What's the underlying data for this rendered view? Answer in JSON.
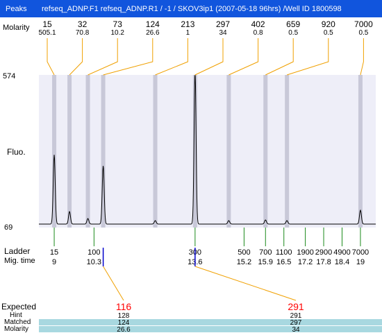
{
  "header": {
    "title": "refseq_ADNP.F1  refseq_ADNP.R1 / -1 / SKOV3ip1 (2007-05-18 96hrs) /Well ID 1800598",
    "left_label": "Peaks"
  },
  "row_labels": {
    "molarity": "Molarity",
    "fluo": "Fluo.",
    "ladder": "Ladder",
    "mig_time": "Mig. time",
    "expected": "Expected",
    "hint": "Hint",
    "matched": "Matched",
    "molarity_bottom": "Molarity"
  },
  "colors": {
    "title_bg": "#1155dd",
    "plot_bg": "#eeeef8",
    "band": "#c8c8d8",
    "connector": "#f0a000",
    "ladder_tick": "#1a8a1a",
    "expected_marker": "#0000cc",
    "expected_text": "#ff0000",
    "matched_band": "#a8d8e0"
  },
  "chart_data": {
    "type": "line",
    "title": "refseq_ADNP.F1  refseq_ADNP.R1 / -1 / SKOV3ip1 (2007-05-18 96hrs) /Well ID 1800598",
    "ylabel": "Fluo.",
    "ylim": [
      69,
      574
    ],
    "y_ticks": [
      "574",
      "69"
    ],
    "xlim": [
      8.5,
      19.5
    ],
    "peaks": [
      {
        "size": "15",
        "molarity": "505.1",
        "time": 9.0,
        "height": 100
      },
      {
        "size": "32",
        "molarity": "70.8",
        "time": 9.5,
        "height": 18
      },
      {
        "size": "73",
        "molarity": "10.2",
        "time": 10.1,
        "height": 8
      },
      {
        "size": "124",
        "molarity": "26.6",
        "time": 10.6,
        "height": 84
      },
      {
        "size": "213",
        "molarity": "1",
        "time": 12.3,
        "height": 5
      },
      {
        "size": "297",
        "molarity": "34",
        "time": 13.6,
        "height": 220
      },
      {
        "size": "402",
        "molarity": "0.8",
        "time": 14.7,
        "height": 5
      },
      {
        "size": "659",
        "molarity": "0.5",
        "time": 15.9,
        "height": 6
      },
      {
        "size": "920",
        "molarity": "0.5",
        "time": 16.6,
        "height": 5
      },
      {
        "size": "7000",
        "molarity": "0.5",
        "time": 19.0,
        "height": 20
      }
    ],
    "ladder": [
      {
        "size": "15",
        "time": "9",
        "t": 9.0
      },
      {
        "size": "100",
        "time": "10.3",
        "t": 10.3
      },
      {
        "size": "300",
        "time": "13.6",
        "t": 13.6
      },
      {
        "size": "500",
        "time": "15.2",
        "t": 15.2
      },
      {
        "size": "700",
        "time": "15.9",
        "t": 15.9
      },
      {
        "size": "1100",
        "time": "16.5",
        "t": 16.5
      },
      {
        "size": "1900",
        "time": "17.2",
        "t": 17.2
      },
      {
        "size": "2900",
        "time": "17.8",
        "t": 17.8
      },
      {
        "size": "4900",
        "time": "18.4",
        "t": 18.4
      },
      {
        "size": "7000",
        "time": "19",
        "t": 19.0
      }
    ],
    "expected": [
      {
        "size": "116",
        "hint": "128",
        "matched": "124",
        "molarity": "26.6",
        "time": 10.6
      },
      {
        "size": "291",
        "hint": "291",
        "matched": "297",
        "molarity": "34",
        "time": 13.6
      }
    ]
  }
}
